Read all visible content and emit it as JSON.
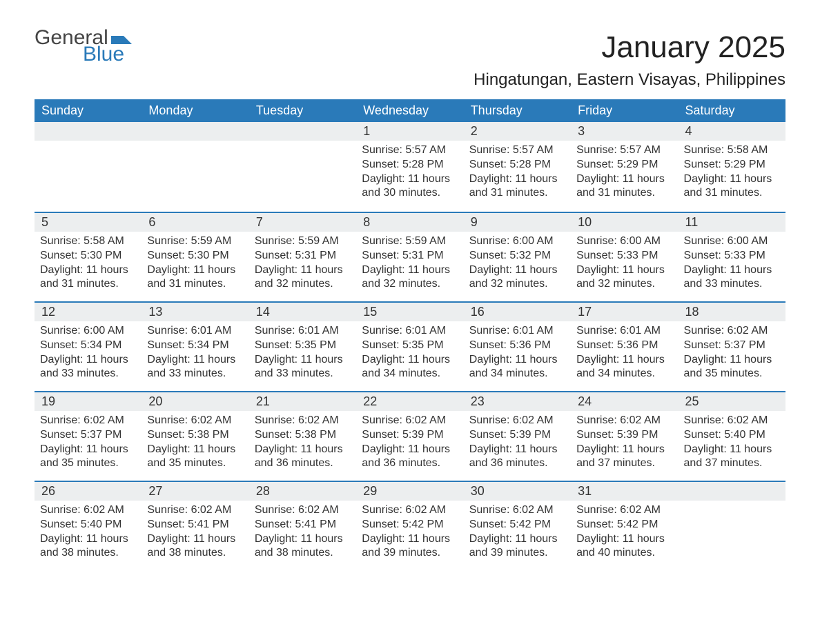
{
  "logo": {
    "text1": "General",
    "text2": "Blue",
    "mark_color": "#2a7ab9",
    "text1_color": "#444444"
  },
  "title": "January 2025",
  "location": "Hingatungan, Eastern Visayas, Philippines",
  "colors": {
    "header_bg": "#2a7ab9",
    "header_fg": "#ffffff",
    "daynum_bg": "#eceeef",
    "week_divider": "#2a7ab9",
    "body_text": "#333333",
    "page_bg": "#ffffff"
  },
  "typography": {
    "title_fontsize": 44,
    "location_fontsize": 24,
    "dow_fontsize": 18,
    "daynum_fontsize": 18,
    "body_fontsize": 16
  },
  "day_of_week": [
    "Sunday",
    "Monday",
    "Tuesday",
    "Wednesday",
    "Thursday",
    "Friday",
    "Saturday"
  ],
  "weeks": [
    [
      {
        "n": "",
        "sunrise": "",
        "sunset": "",
        "daylight": ""
      },
      {
        "n": "",
        "sunrise": "",
        "sunset": "",
        "daylight": ""
      },
      {
        "n": "",
        "sunrise": "",
        "sunset": "",
        "daylight": ""
      },
      {
        "n": "1",
        "sunrise": "Sunrise: 5:57 AM",
        "sunset": "Sunset: 5:28 PM",
        "daylight": "Daylight: 11 hours and 30 minutes."
      },
      {
        "n": "2",
        "sunrise": "Sunrise: 5:57 AM",
        "sunset": "Sunset: 5:28 PM",
        "daylight": "Daylight: 11 hours and 31 minutes."
      },
      {
        "n": "3",
        "sunrise": "Sunrise: 5:57 AM",
        "sunset": "Sunset: 5:29 PM",
        "daylight": "Daylight: 11 hours and 31 minutes."
      },
      {
        "n": "4",
        "sunrise": "Sunrise: 5:58 AM",
        "sunset": "Sunset: 5:29 PM",
        "daylight": "Daylight: 11 hours and 31 minutes."
      }
    ],
    [
      {
        "n": "5",
        "sunrise": "Sunrise: 5:58 AM",
        "sunset": "Sunset: 5:30 PM",
        "daylight": "Daylight: 11 hours and 31 minutes."
      },
      {
        "n": "6",
        "sunrise": "Sunrise: 5:59 AM",
        "sunset": "Sunset: 5:30 PM",
        "daylight": "Daylight: 11 hours and 31 minutes."
      },
      {
        "n": "7",
        "sunrise": "Sunrise: 5:59 AM",
        "sunset": "Sunset: 5:31 PM",
        "daylight": "Daylight: 11 hours and 32 minutes."
      },
      {
        "n": "8",
        "sunrise": "Sunrise: 5:59 AM",
        "sunset": "Sunset: 5:31 PM",
        "daylight": "Daylight: 11 hours and 32 minutes."
      },
      {
        "n": "9",
        "sunrise": "Sunrise: 6:00 AM",
        "sunset": "Sunset: 5:32 PM",
        "daylight": "Daylight: 11 hours and 32 minutes."
      },
      {
        "n": "10",
        "sunrise": "Sunrise: 6:00 AM",
        "sunset": "Sunset: 5:33 PM",
        "daylight": "Daylight: 11 hours and 32 minutes."
      },
      {
        "n": "11",
        "sunrise": "Sunrise: 6:00 AM",
        "sunset": "Sunset: 5:33 PM",
        "daylight": "Daylight: 11 hours and 33 minutes."
      }
    ],
    [
      {
        "n": "12",
        "sunrise": "Sunrise: 6:00 AM",
        "sunset": "Sunset: 5:34 PM",
        "daylight": "Daylight: 11 hours and 33 minutes."
      },
      {
        "n": "13",
        "sunrise": "Sunrise: 6:01 AM",
        "sunset": "Sunset: 5:34 PM",
        "daylight": "Daylight: 11 hours and 33 minutes."
      },
      {
        "n": "14",
        "sunrise": "Sunrise: 6:01 AM",
        "sunset": "Sunset: 5:35 PM",
        "daylight": "Daylight: 11 hours and 33 minutes."
      },
      {
        "n": "15",
        "sunrise": "Sunrise: 6:01 AM",
        "sunset": "Sunset: 5:35 PM",
        "daylight": "Daylight: 11 hours and 34 minutes."
      },
      {
        "n": "16",
        "sunrise": "Sunrise: 6:01 AM",
        "sunset": "Sunset: 5:36 PM",
        "daylight": "Daylight: 11 hours and 34 minutes."
      },
      {
        "n": "17",
        "sunrise": "Sunrise: 6:01 AM",
        "sunset": "Sunset: 5:36 PM",
        "daylight": "Daylight: 11 hours and 34 minutes."
      },
      {
        "n": "18",
        "sunrise": "Sunrise: 6:02 AM",
        "sunset": "Sunset: 5:37 PM",
        "daylight": "Daylight: 11 hours and 35 minutes."
      }
    ],
    [
      {
        "n": "19",
        "sunrise": "Sunrise: 6:02 AM",
        "sunset": "Sunset: 5:37 PM",
        "daylight": "Daylight: 11 hours and 35 minutes."
      },
      {
        "n": "20",
        "sunrise": "Sunrise: 6:02 AM",
        "sunset": "Sunset: 5:38 PM",
        "daylight": "Daylight: 11 hours and 35 minutes."
      },
      {
        "n": "21",
        "sunrise": "Sunrise: 6:02 AM",
        "sunset": "Sunset: 5:38 PM",
        "daylight": "Daylight: 11 hours and 36 minutes."
      },
      {
        "n": "22",
        "sunrise": "Sunrise: 6:02 AM",
        "sunset": "Sunset: 5:39 PM",
        "daylight": "Daylight: 11 hours and 36 minutes."
      },
      {
        "n": "23",
        "sunrise": "Sunrise: 6:02 AM",
        "sunset": "Sunset: 5:39 PM",
        "daylight": "Daylight: 11 hours and 36 minutes."
      },
      {
        "n": "24",
        "sunrise": "Sunrise: 6:02 AM",
        "sunset": "Sunset: 5:39 PM",
        "daylight": "Daylight: 11 hours and 37 minutes."
      },
      {
        "n": "25",
        "sunrise": "Sunrise: 6:02 AM",
        "sunset": "Sunset: 5:40 PM",
        "daylight": "Daylight: 11 hours and 37 minutes."
      }
    ],
    [
      {
        "n": "26",
        "sunrise": "Sunrise: 6:02 AM",
        "sunset": "Sunset: 5:40 PM",
        "daylight": "Daylight: 11 hours and 38 minutes."
      },
      {
        "n": "27",
        "sunrise": "Sunrise: 6:02 AM",
        "sunset": "Sunset: 5:41 PM",
        "daylight": "Daylight: 11 hours and 38 minutes."
      },
      {
        "n": "28",
        "sunrise": "Sunrise: 6:02 AM",
        "sunset": "Sunset: 5:41 PM",
        "daylight": "Daylight: 11 hours and 38 minutes."
      },
      {
        "n": "29",
        "sunrise": "Sunrise: 6:02 AM",
        "sunset": "Sunset: 5:42 PM",
        "daylight": "Daylight: 11 hours and 39 minutes."
      },
      {
        "n": "30",
        "sunrise": "Sunrise: 6:02 AM",
        "sunset": "Sunset: 5:42 PM",
        "daylight": "Daylight: 11 hours and 39 minutes."
      },
      {
        "n": "31",
        "sunrise": "Sunrise: 6:02 AM",
        "sunset": "Sunset: 5:42 PM",
        "daylight": "Daylight: 11 hours and 40 minutes."
      },
      {
        "n": "",
        "sunrise": "",
        "sunset": "",
        "daylight": ""
      }
    ]
  ]
}
